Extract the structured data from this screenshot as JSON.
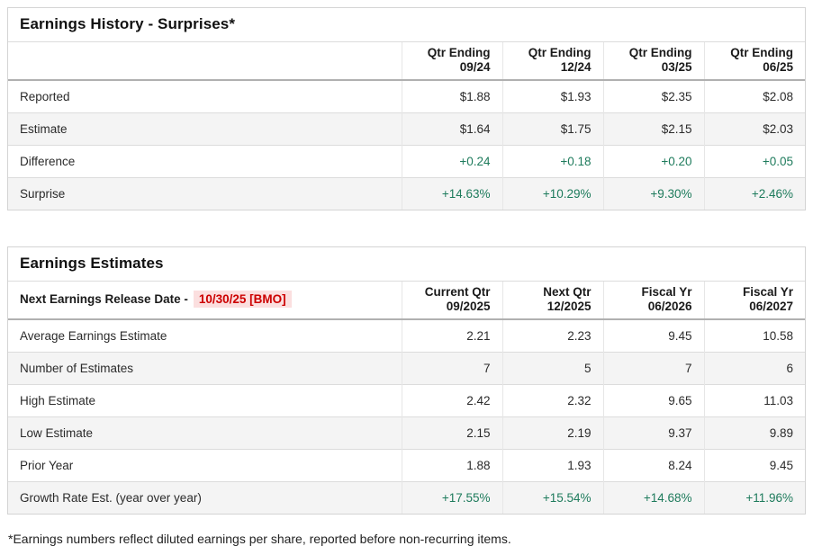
{
  "colors": {
    "positive_green": "#1e7b5c",
    "alert_red": "#cc0000",
    "alert_background": "#fbdfdf",
    "row_alt_background": "#f4f4f4"
  },
  "earnings_history": {
    "title": "Earnings History - Surprises*",
    "columns": [
      "Qtr Ending\n09/24",
      "Qtr Ending\n12/24",
      "Qtr Ending\n03/25",
      "Qtr Ending\n06/25"
    ],
    "rows": [
      {
        "label": "Reported",
        "values": [
          "$1.88",
          "$1.93",
          "$2.35",
          "$2.08"
        ]
      },
      {
        "label": "Estimate",
        "values": [
          "$1.64",
          "$1.75",
          "$2.15",
          "$2.03"
        ]
      },
      {
        "label": "Difference",
        "values": [
          "+0.24",
          "+0.18",
          "+0.20",
          "+0.05"
        ]
      },
      {
        "label": "Surprise",
        "values": [
          "+14.63%",
          "+10.29%",
          "+9.30%",
          "+2.46%"
        ]
      }
    ]
  },
  "earnings_estimates": {
    "title": "Earnings Estimates",
    "release_date_label": "Next Earnings Release Date -",
    "release_date_value": "10/30/25 [BMO]",
    "columns": [
      "Current Qtr\n09/2025",
      "Next Qtr\n12/2025",
      "Fiscal Yr\n06/2026",
      "Fiscal Yr\n06/2027"
    ],
    "rows": [
      {
        "label": "Average Earnings Estimate",
        "values": [
          "2.21",
          "2.23",
          "9.45",
          "10.58"
        ]
      },
      {
        "label": "Number of Estimates",
        "values": [
          "7",
          "5",
          "7",
          "6"
        ]
      },
      {
        "label": "High Estimate",
        "values": [
          "2.42",
          "2.32",
          "9.65",
          "11.03"
        ]
      },
      {
        "label": "Low Estimate",
        "values": [
          "2.15",
          "2.19",
          "9.37",
          "9.89"
        ]
      },
      {
        "label": "Prior Year",
        "values": [
          "1.88",
          "1.93",
          "8.24",
          "9.45"
        ]
      },
      {
        "label": "Growth Rate Est. (year over year)",
        "values": [
          "+17.55%",
          "+15.54%",
          "+14.68%",
          "+11.96%"
        ]
      }
    ]
  },
  "footnote": "*Earnings numbers reflect diluted earnings per share, reported before non-recurring items."
}
